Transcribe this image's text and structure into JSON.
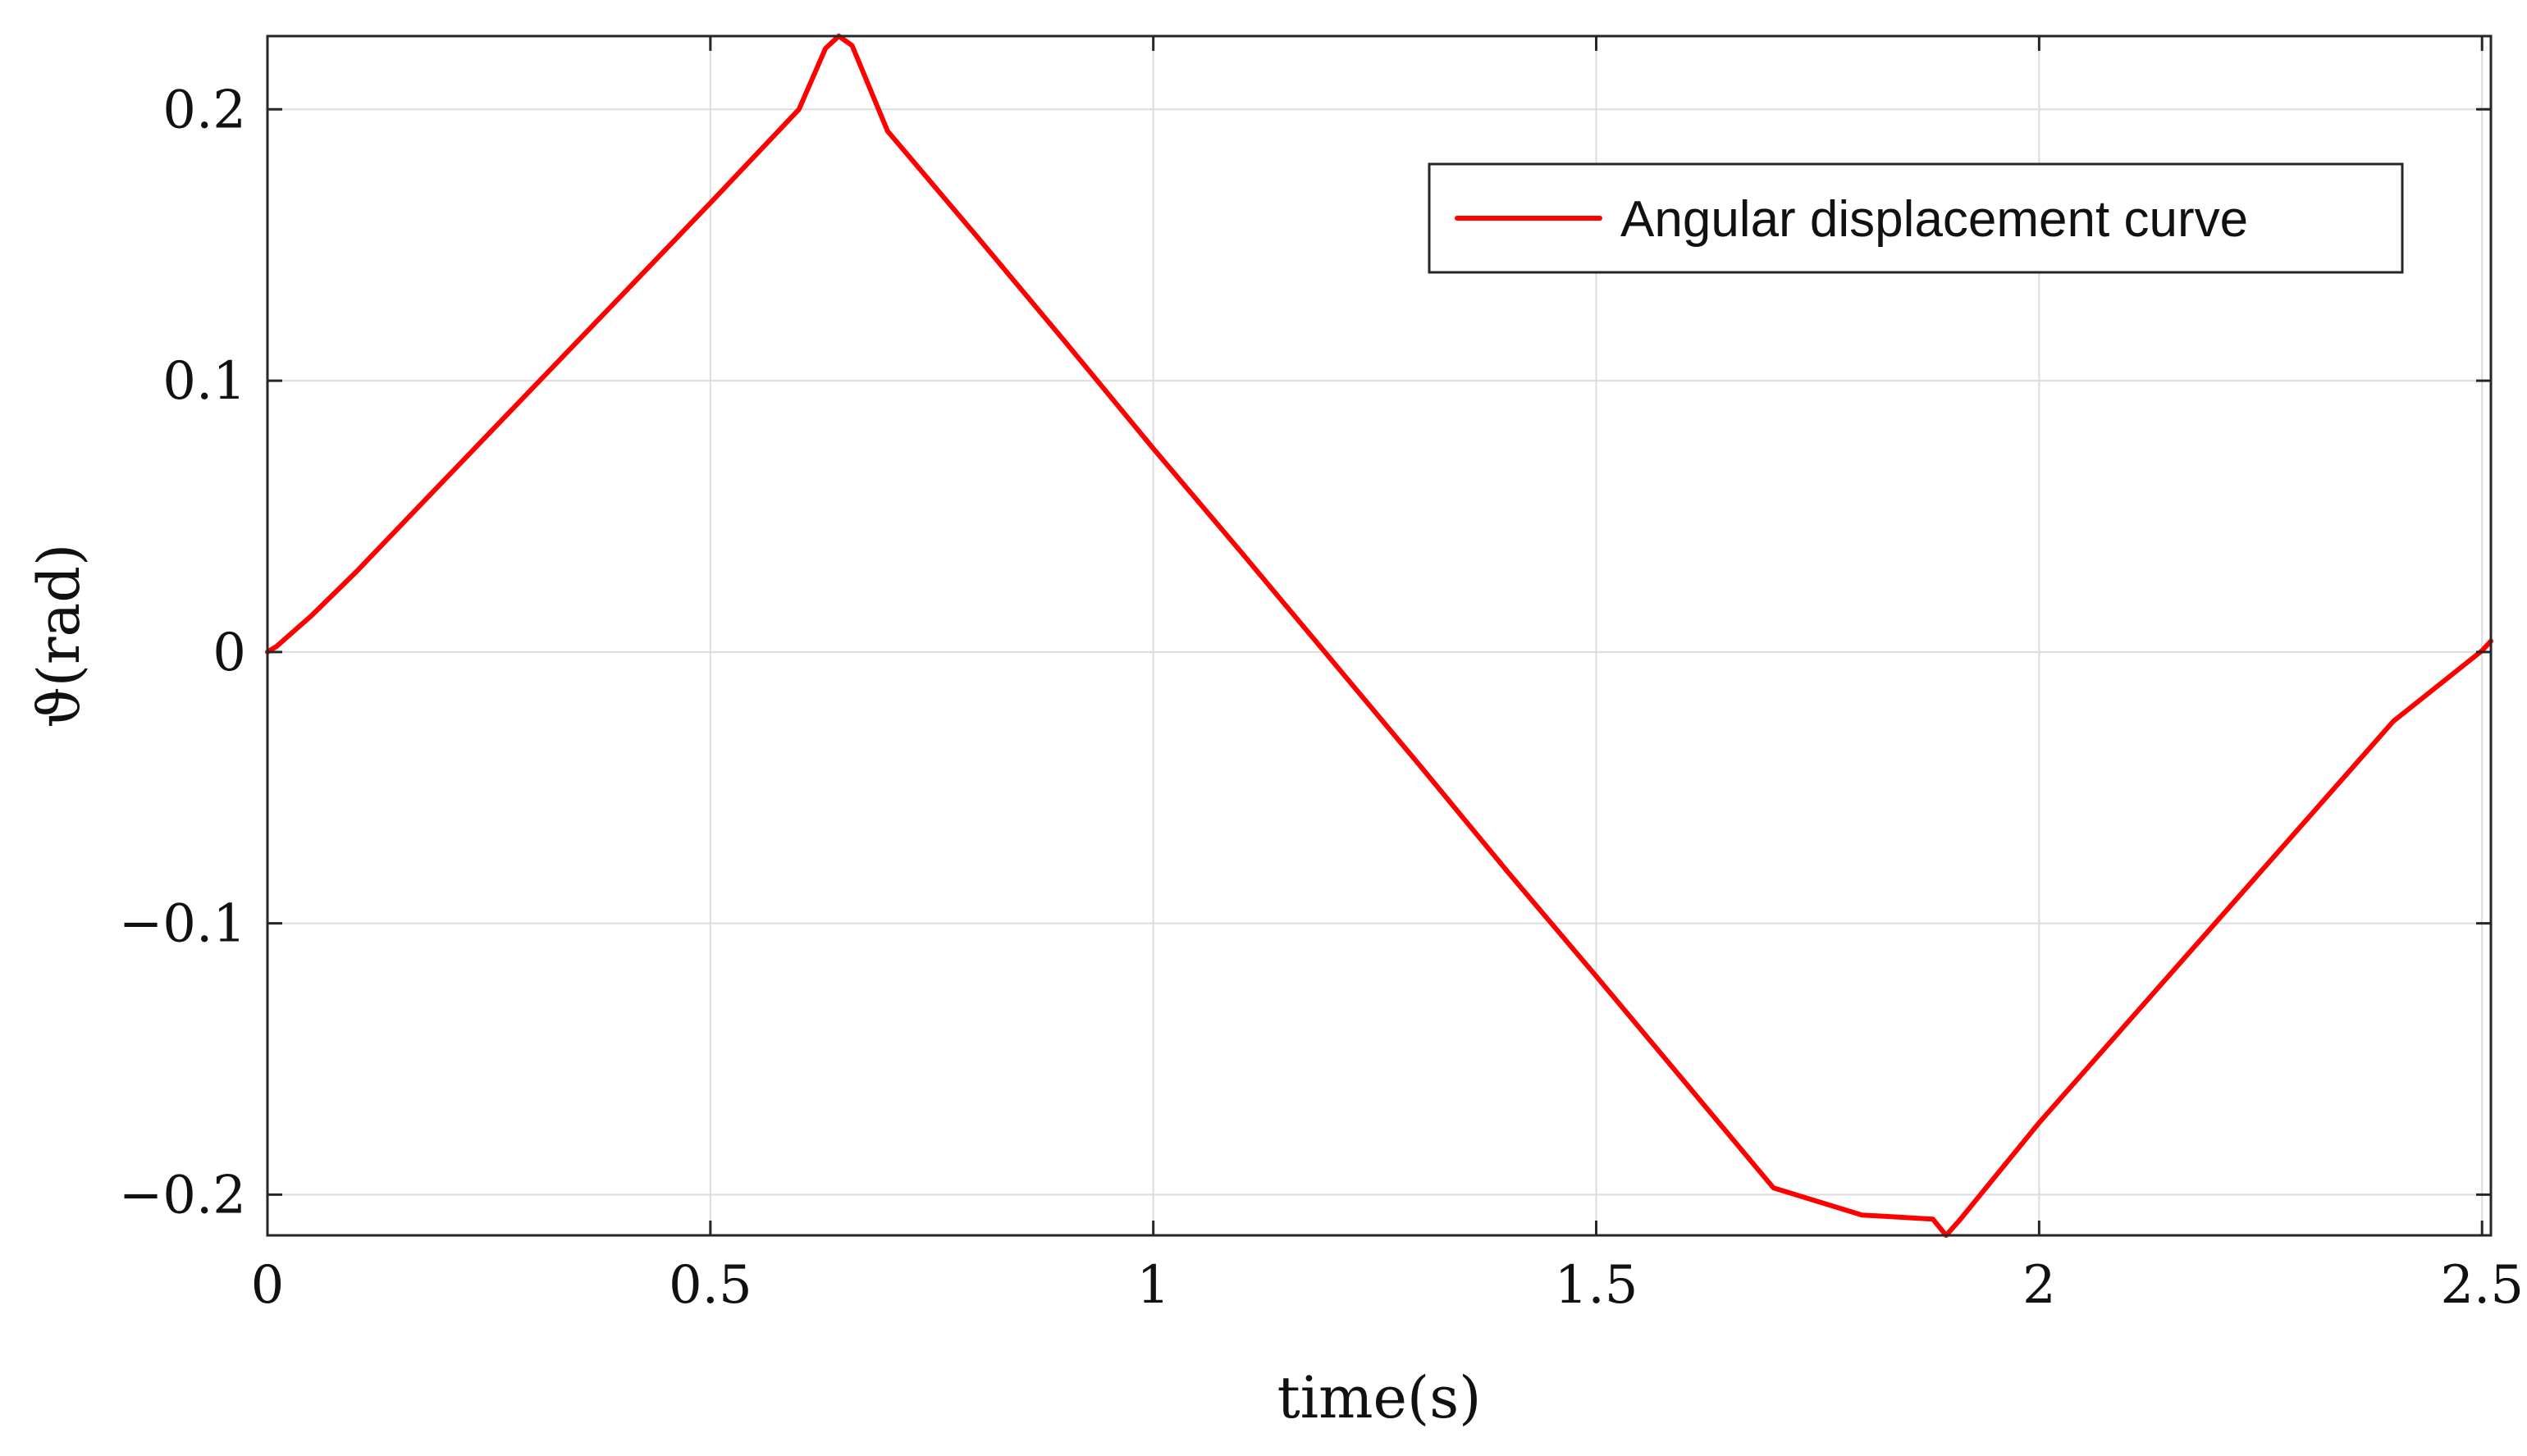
{
  "chart_data": {
    "type": "line",
    "title": "",
    "xlabel": "time(s)",
    "ylabel": "ϑ(rad)",
    "xlim": [
      0,
      2.51
    ],
    "ylim": [
      -0.215,
      0.227
    ],
    "xticks": [
      0,
      0.5,
      1,
      1.5,
      2,
      2.5
    ],
    "xtick_labels": [
      "0",
      "0.5",
      "1",
      "1.5",
      "2",
      "2.5"
    ],
    "yticks": [
      -0.2,
      -0.1,
      0,
      0.1,
      0.2
    ],
    "ytick_labels": [
      "−0.2",
      "−0.1",
      "0",
      "0.1",
      "0.2"
    ],
    "grid": true,
    "legend_position": "top-right",
    "series": [
      {
        "name": "Angular displacement curve",
        "color": "#ff0000",
        "x": [
          0,
          0.01,
          0.05,
          0.1,
          0.2,
          0.3,
          0.4,
          0.5,
          0.6,
          0.63,
          0.645,
          0.66,
          0.7,
          0.8,
          0.9,
          1.0,
          1.1,
          1.2,
          1.3,
          1.4,
          1.5,
          1.6,
          1.7,
          1.8,
          1.88,
          1.895,
          1.91,
          2.0,
          2.1,
          2.2,
          2.3,
          2.4,
          2.5,
          2.51
        ],
        "y": [
          0.0,
          0.002,
          0.0135,
          0.0295,
          0.0635,
          0.0975,
          0.1315,
          0.1655,
          0.2,
          0.2225,
          0.227,
          0.2235,
          0.192,
          0.1535,
          0.1145,
          0.075,
          0.0365,
          -0.0025,
          -0.0415,
          -0.081,
          -0.1195,
          -0.1585,
          -0.1975,
          -0.2075,
          -0.209,
          -0.215,
          -0.2095,
          -0.1735,
          -0.1365,
          -0.0995,
          -0.0625,
          -0.0255,
          0.0005,
          0.004
        ]
      }
    ]
  }
}
